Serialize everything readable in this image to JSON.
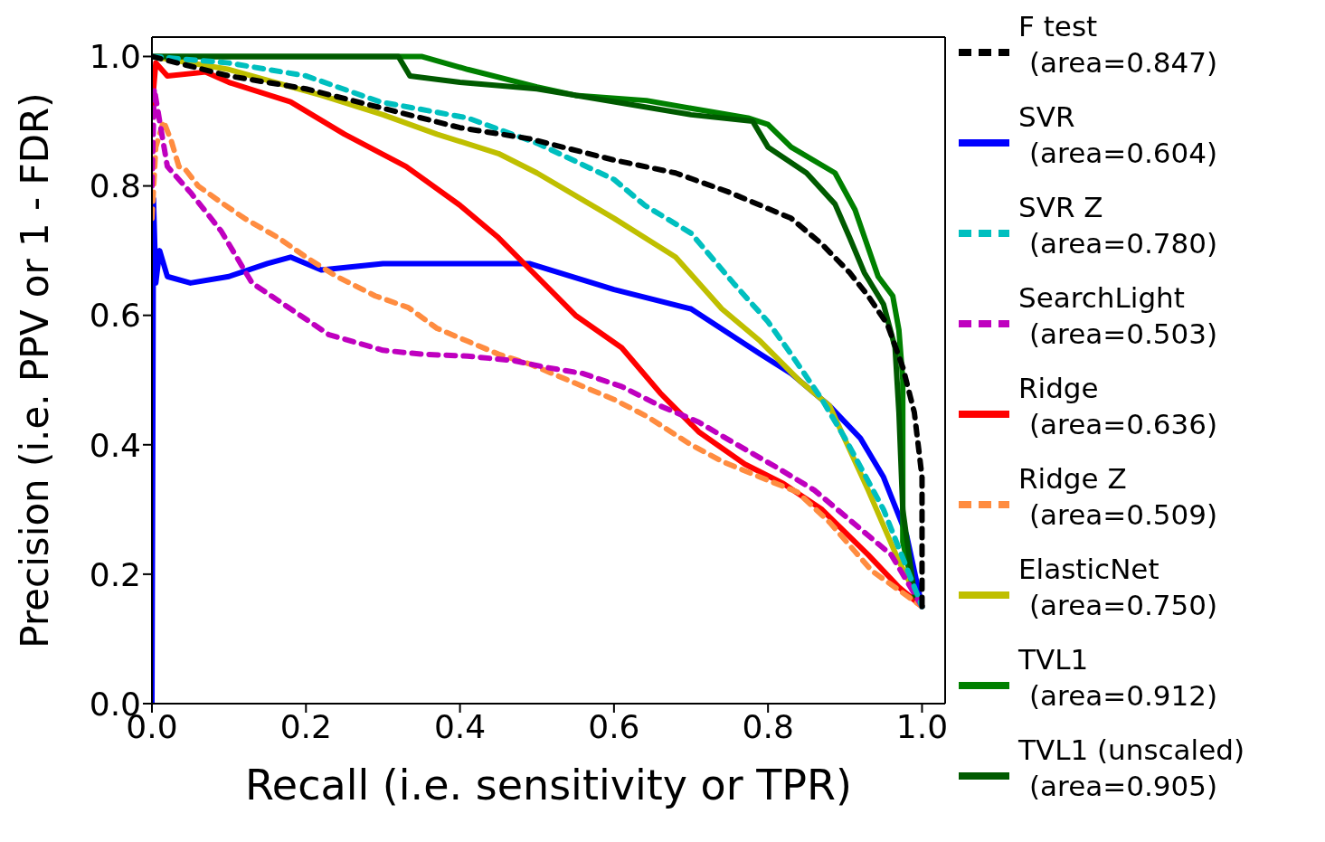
{
  "chart_data": {
    "type": "line",
    "xlabel": "Recall (i.e. sensitivity or TPR)",
    "ylabel": "Precision (i.e. PPV or 1 - FDR)",
    "xlim": [
      0,
      1.03
    ],
    "ylim": [
      0,
      1.03
    ],
    "xticks": [
      {
        "value": 0,
        "label": "0.0"
      },
      0.2,
      0.4,
      0.6,
      0.8,
      {
        "value": 1,
        "label": "1.0"
      }
    ],
    "yticks": [
      {
        "value": 0,
        "label": "0.0"
      },
      0.2,
      0.4,
      0.6,
      0.8,
      {
        "value": 1,
        "label": "1.0"
      }
    ],
    "grid": false,
    "legend": "right",
    "marker": "none",
    "series": [
      {
        "name": "F test\n(area=0.847)",
        "color": "#000000",
        "line_style": "dashed",
        "x": [
          0,
          0.1,
          0.2,
          0.3,
          0.4,
          0.49,
          0.6,
          0.68,
          0.75,
          0.83,
          0.87,
          0.906,
          0.93,
          0.955,
          0.975,
          0.99,
          1.0,
          1.0,
          1.0
        ],
        "values": [
          1.0,
          0.97,
          0.95,
          0.92,
          0.89,
          0.873,
          0.84,
          0.82,
          0.79,
          0.75,
          0.71,
          0.666,
          0.63,
          0.586,
          0.52,
          0.45,
          0.35,
          0.25,
          0.15
        ]
      },
      {
        "name": "SVR\n(area=0.604)",
        "color": "#0000ff",
        "line_style": "solid",
        "x": [
          0,
          0.002,
          0.005,
          0.01,
          0.02,
          0.05,
          0.1,
          0.15,
          0.18,
          0.22,
          0.3,
          0.4,
          0.49,
          0.6,
          0.7,
          0.79,
          0.83,
          0.88,
          0.92,
          0.95,
          0.98,
          1.0
        ],
        "values": [
          0,
          0.78,
          0.65,
          0.7,
          0.66,
          0.65,
          0.66,
          0.68,
          0.69,
          0.67,
          0.68,
          0.68,
          0.68,
          0.64,
          0.61,
          0.54,
          0.51,
          0.46,
          0.41,
          0.35,
          0.26,
          0.15
        ]
      },
      {
        "name": "SVR Z\n(area=0.780)",
        "color": "#00bfbf",
        "line_style": "dashed",
        "x": [
          0,
          0.1,
          0.2,
          0.296,
          0.41,
          0.5,
          0.6,
          0.64,
          0.7,
          0.755,
          0.8,
          0.83,
          0.87,
          0.9,
          0.95,
          1.0
        ],
        "values": [
          1.0,
          0.99,
          0.97,
          0.93,
          0.905,
          0.866,
          0.81,
          0.77,
          0.727,
          0.65,
          0.59,
          0.54,
          0.47,
          0.41,
          0.3,
          0.15
        ]
      },
      {
        "name": "SearchLight\n(area=0.503)",
        "color": "#bf00bf",
        "line_style": "dashed",
        "x": [
          0,
          0.003,
          0.01,
          0.02,
          0.05,
          0.09,
          0.13,
          0.18,
          0.23,
          0.3,
          0.35,
          0.41,
          0.47,
          0.51,
          0.56,
          0.61,
          0.66,
          0.71,
          0.76,
          0.81,
          0.86,
          0.9,
          0.96,
          1.0
        ],
        "values": [
          0.8,
          0.95,
          0.9,
          0.83,
          0.79,
          0.73,
          0.65,
          0.61,
          0.57,
          0.546,
          0.54,
          0.537,
          0.53,
          0.52,
          0.51,
          0.49,
          0.46,
          0.435,
          0.4,
          0.366,
          0.33,
          0.29,
          0.23,
          0.15
        ]
      },
      {
        "name": "Ridge\n(area=0.636)",
        "color": "#ff0000",
        "line_style": "solid",
        "x": [
          0,
          0.005,
          0.02,
          0.07,
          0.1,
          0.18,
          0.25,
          0.33,
          0.4,
          0.45,
          0.5,
          0.55,
          0.61,
          0.66,
          0.71,
          0.77,
          0.82,
          0.87,
          0.93,
          0.97,
          1.0
        ],
        "values": [
          0.92,
          0.99,
          0.97,
          0.976,
          0.96,
          0.93,
          0.88,
          0.83,
          0.77,
          0.72,
          0.66,
          0.6,
          0.55,
          0.48,
          0.42,
          0.37,
          0.34,
          0.3,
          0.23,
          0.18,
          0.15
        ]
      },
      {
        "name": "Ridge Z\n(area=0.509)",
        "color": "#ff8c40",
        "line_style": "dashed",
        "x": [
          0,
          0.005,
          0.015,
          0.025,
          0.035,
          0.043,
          0.06,
          0.088,
          0.12,
          0.164,
          0.2,
          0.24,
          0.29,
          0.333,
          0.37,
          0.41,
          0.45,
          0.49,
          0.546,
          0.6,
          0.644,
          0.7,
          0.741,
          0.8,
          0.838,
          0.88,
          0.935,
          1.0
        ],
        "values": [
          0.75,
          0.86,
          0.9,
          0.87,
          0.83,
          0.826,
          0.8,
          0.776,
          0.75,
          0.72,
          0.69,
          0.66,
          0.63,
          0.612,
          0.58,
          0.56,
          0.54,
          0.525,
          0.497,
          0.47,
          0.443,
          0.4,
          0.374,
          0.345,
          0.327,
          0.28,
          0.205,
          0.15
        ]
      },
      {
        "name": "ElasticNet\n(area=0.750)",
        "color": "#bfbf00",
        "line_style": "solid",
        "x": [
          0,
          0.1,
          0.22,
          0.3,
          0.37,
          0.45,
          0.5,
          0.6,
          0.68,
          0.74,
          0.79,
          0.84,
          0.88,
          0.93,
          0.97,
          1.0
        ],
        "values": [
          1.0,
          0.98,
          0.94,
          0.91,
          0.88,
          0.85,
          0.82,
          0.75,
          0.69,
          0.61,
          0.56,
          0.5,
          0.46,
          0.33,
          0.22,
          0.15
        ]
      },
      {
        "name": "TVL1\n(area=0.912)",
        "color": "#008000",
        "line_style": "solid",
        "x": [
          0,
          0.35,
          0.41,
          0.5,
          0.55,
          0.642,
          0.7,
          0.774,
          0.8,
          0.83,
          0.887,
          0.913,
          0.943,
          0.962,
          0.97,
          0.975,
          0.975,
          0.99,
          1.0
        ],
        "values": [
          1.0,
          1.0,
          0.98,
          0.953,
          0.94,
          0.932,
          0.92,
          0.905,
          0.895,
          0.86,
          0.82,
          0.763,
          0.66,
          0.63,
          0.577,
          0.5,
          0.25,
          0.17,
          0.15
        ]
      },
      {
        "name": "TVL1 (unscaled)\n(area=0.905)",
        "color": "#005a00",
        "line_style": "solid",
        "x": [
          0,
          0.32,
          0.335,
          0.4,
          0.5,
          0.6,
          0.7,
          0.78,
          0.8,
          0.85,
          0.887,
          0.906,
          0.925,
          0.95,
          0.965,
          0.97,
          0.975,
          0.99,
          1.0
        ],
        "values": [
          1.0,
          1.0,
          0.97,
          0.96,
          0.95,
          0.93,
          0.91,
          0.9,
          0.86,
          0.82,
          0.772,
          0.72,
          0.666,
          0.617,
          0.55,
          0.45,
          0.3,
          0.17,
          0.15
        ]
      }
    ]
  }
}
